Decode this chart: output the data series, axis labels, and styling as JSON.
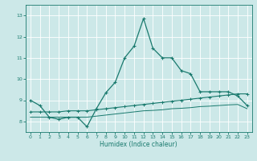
{
  "xlabel": "Humidex (Indice chaleur)",
  "background_color": "#cce8e8",
  "grid_color": "#ffffff",
  "line_color": "#1a7a6e",
  "xlim": [
    -0.5,
    23.5
  ],
  "ylim": [
    7.5,
    13.5
  ],
  "yticks": [
    8,
    9,
    10,
    11,
    12,
    13
  ],
  "xticks": [
    0,
    1,
    2,
    3,
    4,
    5,
    6,
    7,
    8,
    9,
    10,
    11,
    12,
    13,
    14,
    15,
    16,
    17,
    18,
    19,
    20,
    21,
    22,
    23
  ],
  "series1_x": [
    0,
    1,
    2,
    3,
    4,
    5,
    6,
    7,
    8,
    9,
    10,
    11,
    12,
    13,
    14,
    15,
    16,
    17,
    18,
    19,
    20,
    21,
    22,
    23
  ],
  "series1_y": [
    9.0,
    8.75,
    8.2,
    8.1,
    8.2,
    8.2,
    7.75,
    8.6,
    9.35,
    9.85,
    11.0,
    11.55,
    12.85,
    11.45,
    11.0,
    11.0,
    10.4,
    10.25,
    9.4,
    9.4,
    9.4,
    9.4,
    9.2,
    8.75
  ],
  "series2_x": [
    0,
    1,
    2,
    3,
    4,
    5,
    6,
    7,
    8,
    9,
    10,
    11,
    12,
    13,
    14,
    15,
    16,
    17,
    18,
    19,
    20,
    21,
    22,
    23
  ],
  "series2_y": [
    8.45,
    8.45,
    8.45,
    8.45,
    8.5,
    8.5,
    8.5,
    8.55,
    8.6,
    8.65,
    8.7,
    8.75,
    8.8,
    8.85,
    8.9,
    8.95,
    9.0,
    9.05,
    9.1,
    9.15,
    9.2,
    9.25,
    9.3,
    9.3
  ],
  "series3_x": [
    0,
    1,
    2,
    3,
    4,
    5,
    6,
    7,
    8,
    9,
    10,
    11,
    12,
    13,
    14,
    15,
    16,
    17,
    18,
    19,
    20,
    21,
    22,
    23
  ],
  "series3_y": [
    8.2,
    8.2,
    8.2,
    8.2,
    8.2,
    8.2,
    8.2,
    8.25,
    8.3,
    8.35,
    8.4,
    8.45,
    8.5,
    8.52,
    8.55,
    8.6,
    8.62,
    8.65,
    8.7,
    8.72,
    8.75,
    8.78,
    8.8,
    8.6
  ]
}
